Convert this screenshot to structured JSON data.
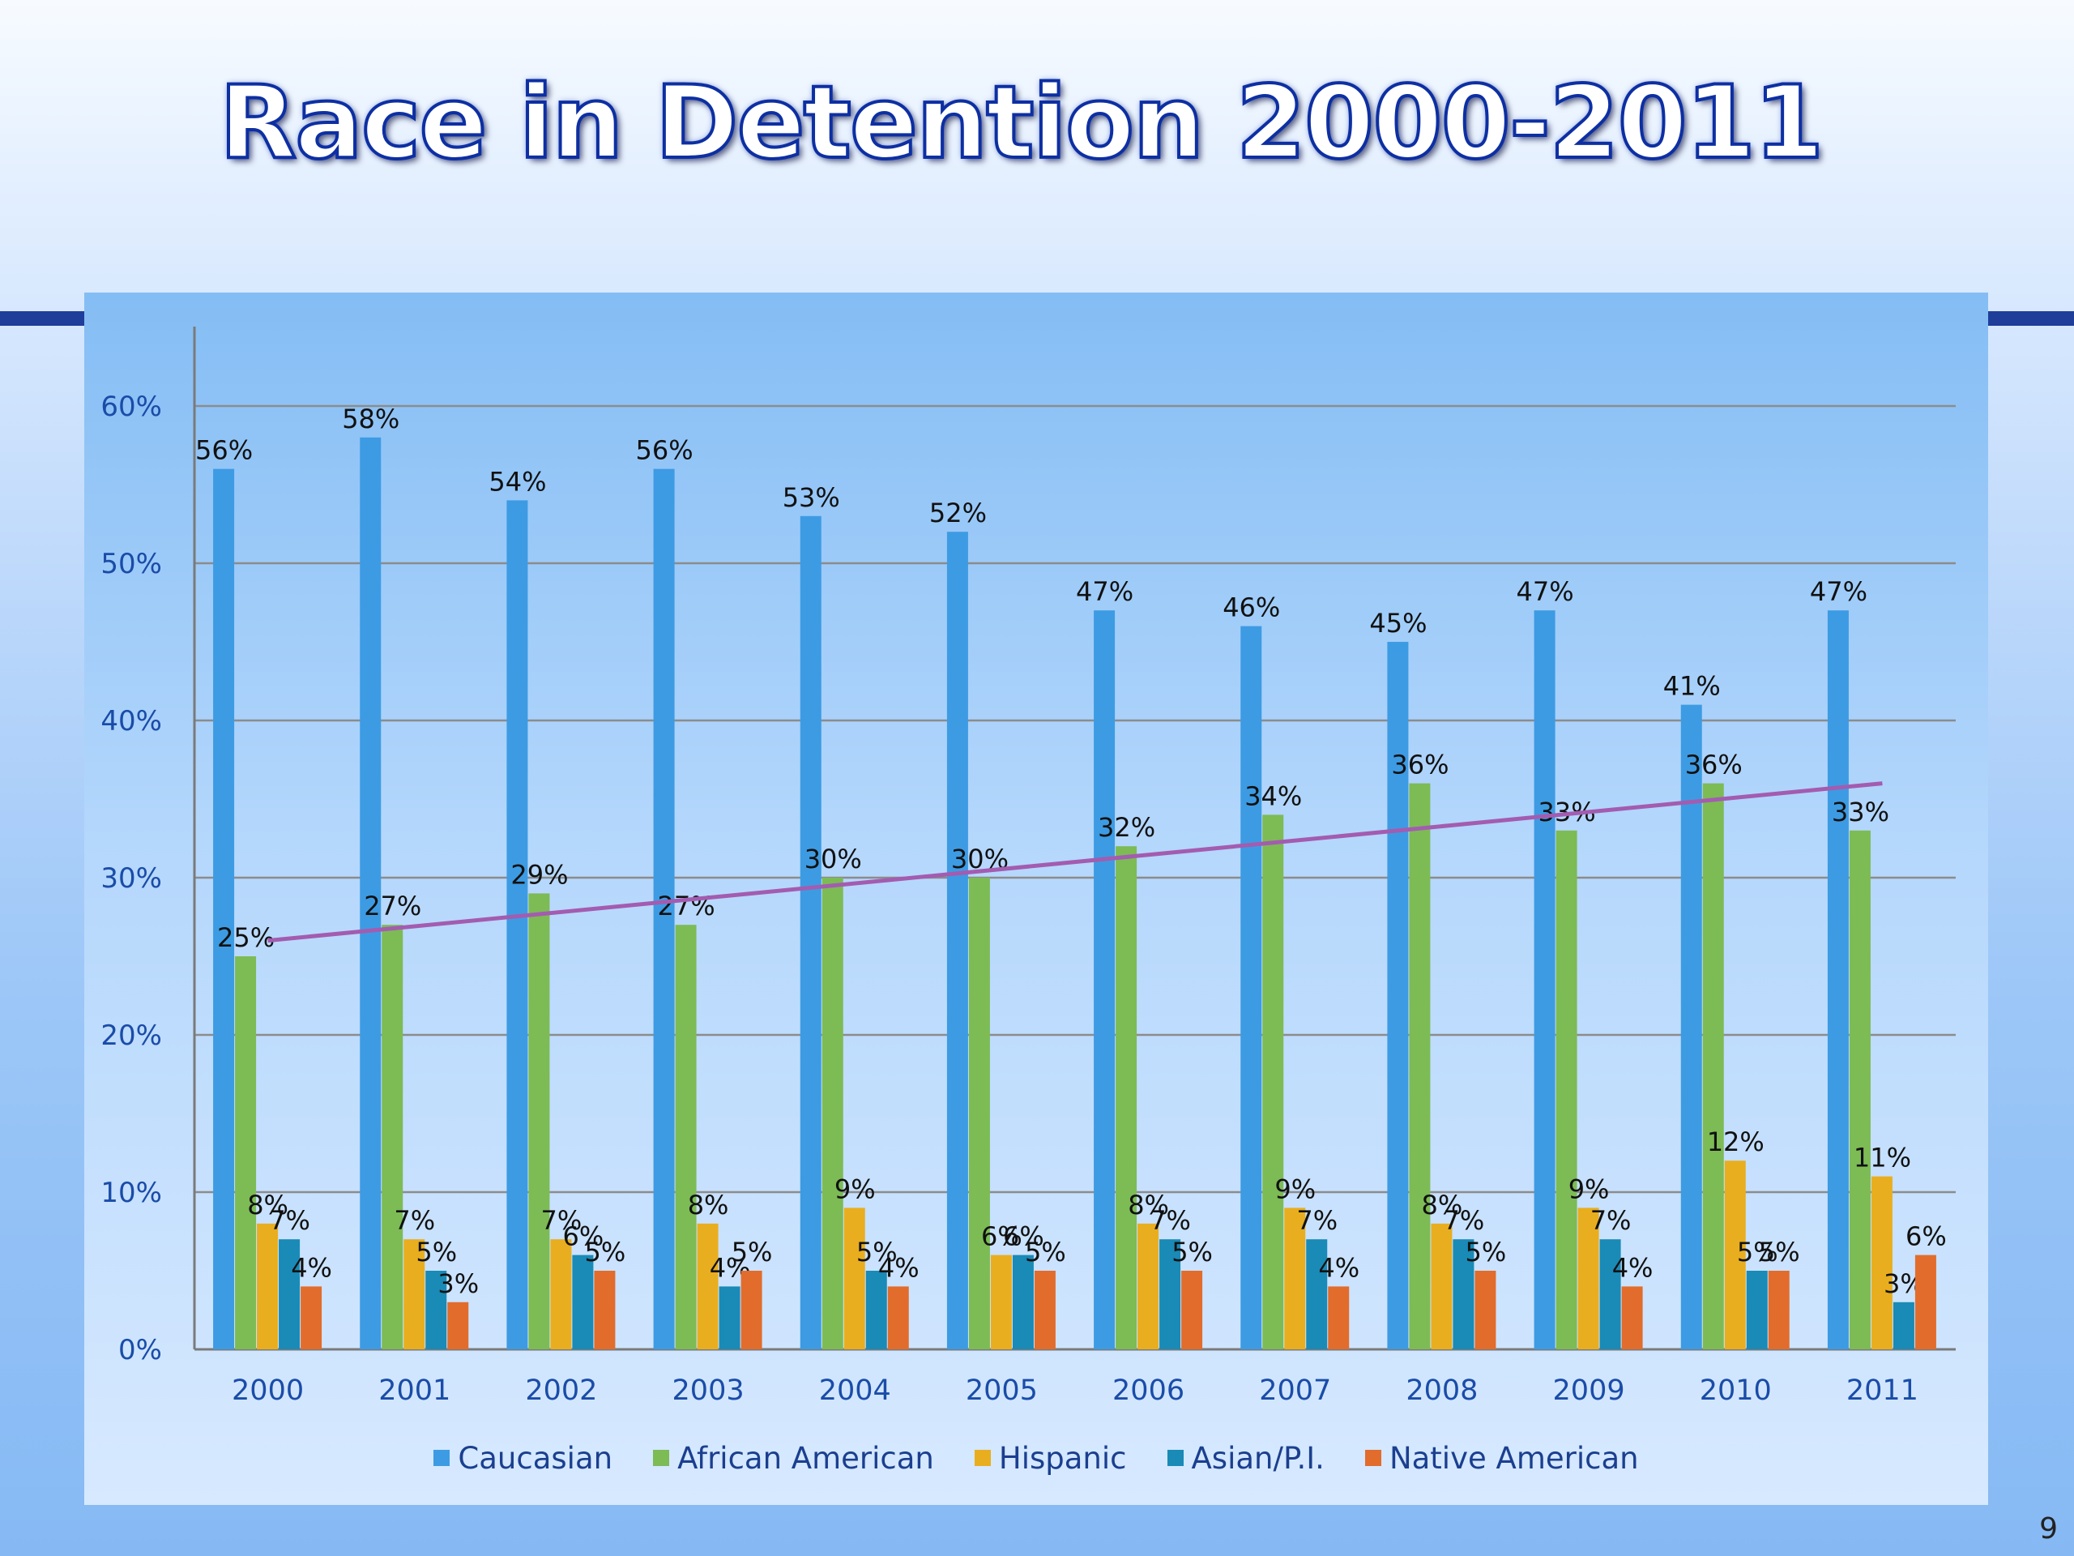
{
  "slide": {
    "title": "Race in Detention 2000-2011",
    "page_number": "9"
  },
  "chart_data": {
    "type": "bar",
    "title": "",
    "xlabel": "",
    "ylabel": "",
    "ylim": [
      0,
      65
    ],
    "yticks": [
      "0%",
      "10%",
      "20%",
      "30%",
      "40%",
      "50%",
      "60%"
    ],
    "grid": true,
    "legend": "bottom",
    "categories": [
      "2000",
      "2001",
      "2002",
      "2003",
      "2004",
      "2005",
      "2006",
      "2007",
      "2008",
      "2009",
      "2010",
      "2011"
    ],
    "series": [
      {
        "name": "Caucasian",
        "color": "#3d9be3",
        "values": [
          56,
          58,
          54,
          56,
          53,
          52,
          47,
          46,
          45,
          47,
          41,
          47
        ]
      },
      {
        "name": "African American",
        "color": "#7dbb55",
        "values": [
          25,
          27,
          29,
          27,
          30,
          30,
          32,
          34,
          36,
          33,
          36,
          33
        ]
      },
      {
        "name": "Hispanic",
        "color": "#e9ae1f",
        "values": [
          8,
          7,
          7,
          8,
          9,
          6,
          8,
          9,
          8,
          9,
          12,
          11
        ]
      },
      {
        "name": "Asian/P.I.",
        "color": "#1a8ab6",
        "values": [
          7,
          5,
          6,
          4,
          5,
          6,
          7,
          7,
          7,
          7,
          5,
          3
        ]
      },
      {
        "name": "Native American",
        "color": "#e26c2c",
        "values": [
          4,
          3,
          5,
          5,
          4,
          5,
          5,
          4,
          5,
          4,
          5,
          6
        ]
      }
    ],
    "trendline": {
      "series": "African American",
      "color": "#a35cb0",
      "start": 26,
      "end": 36
    }
  }
}
